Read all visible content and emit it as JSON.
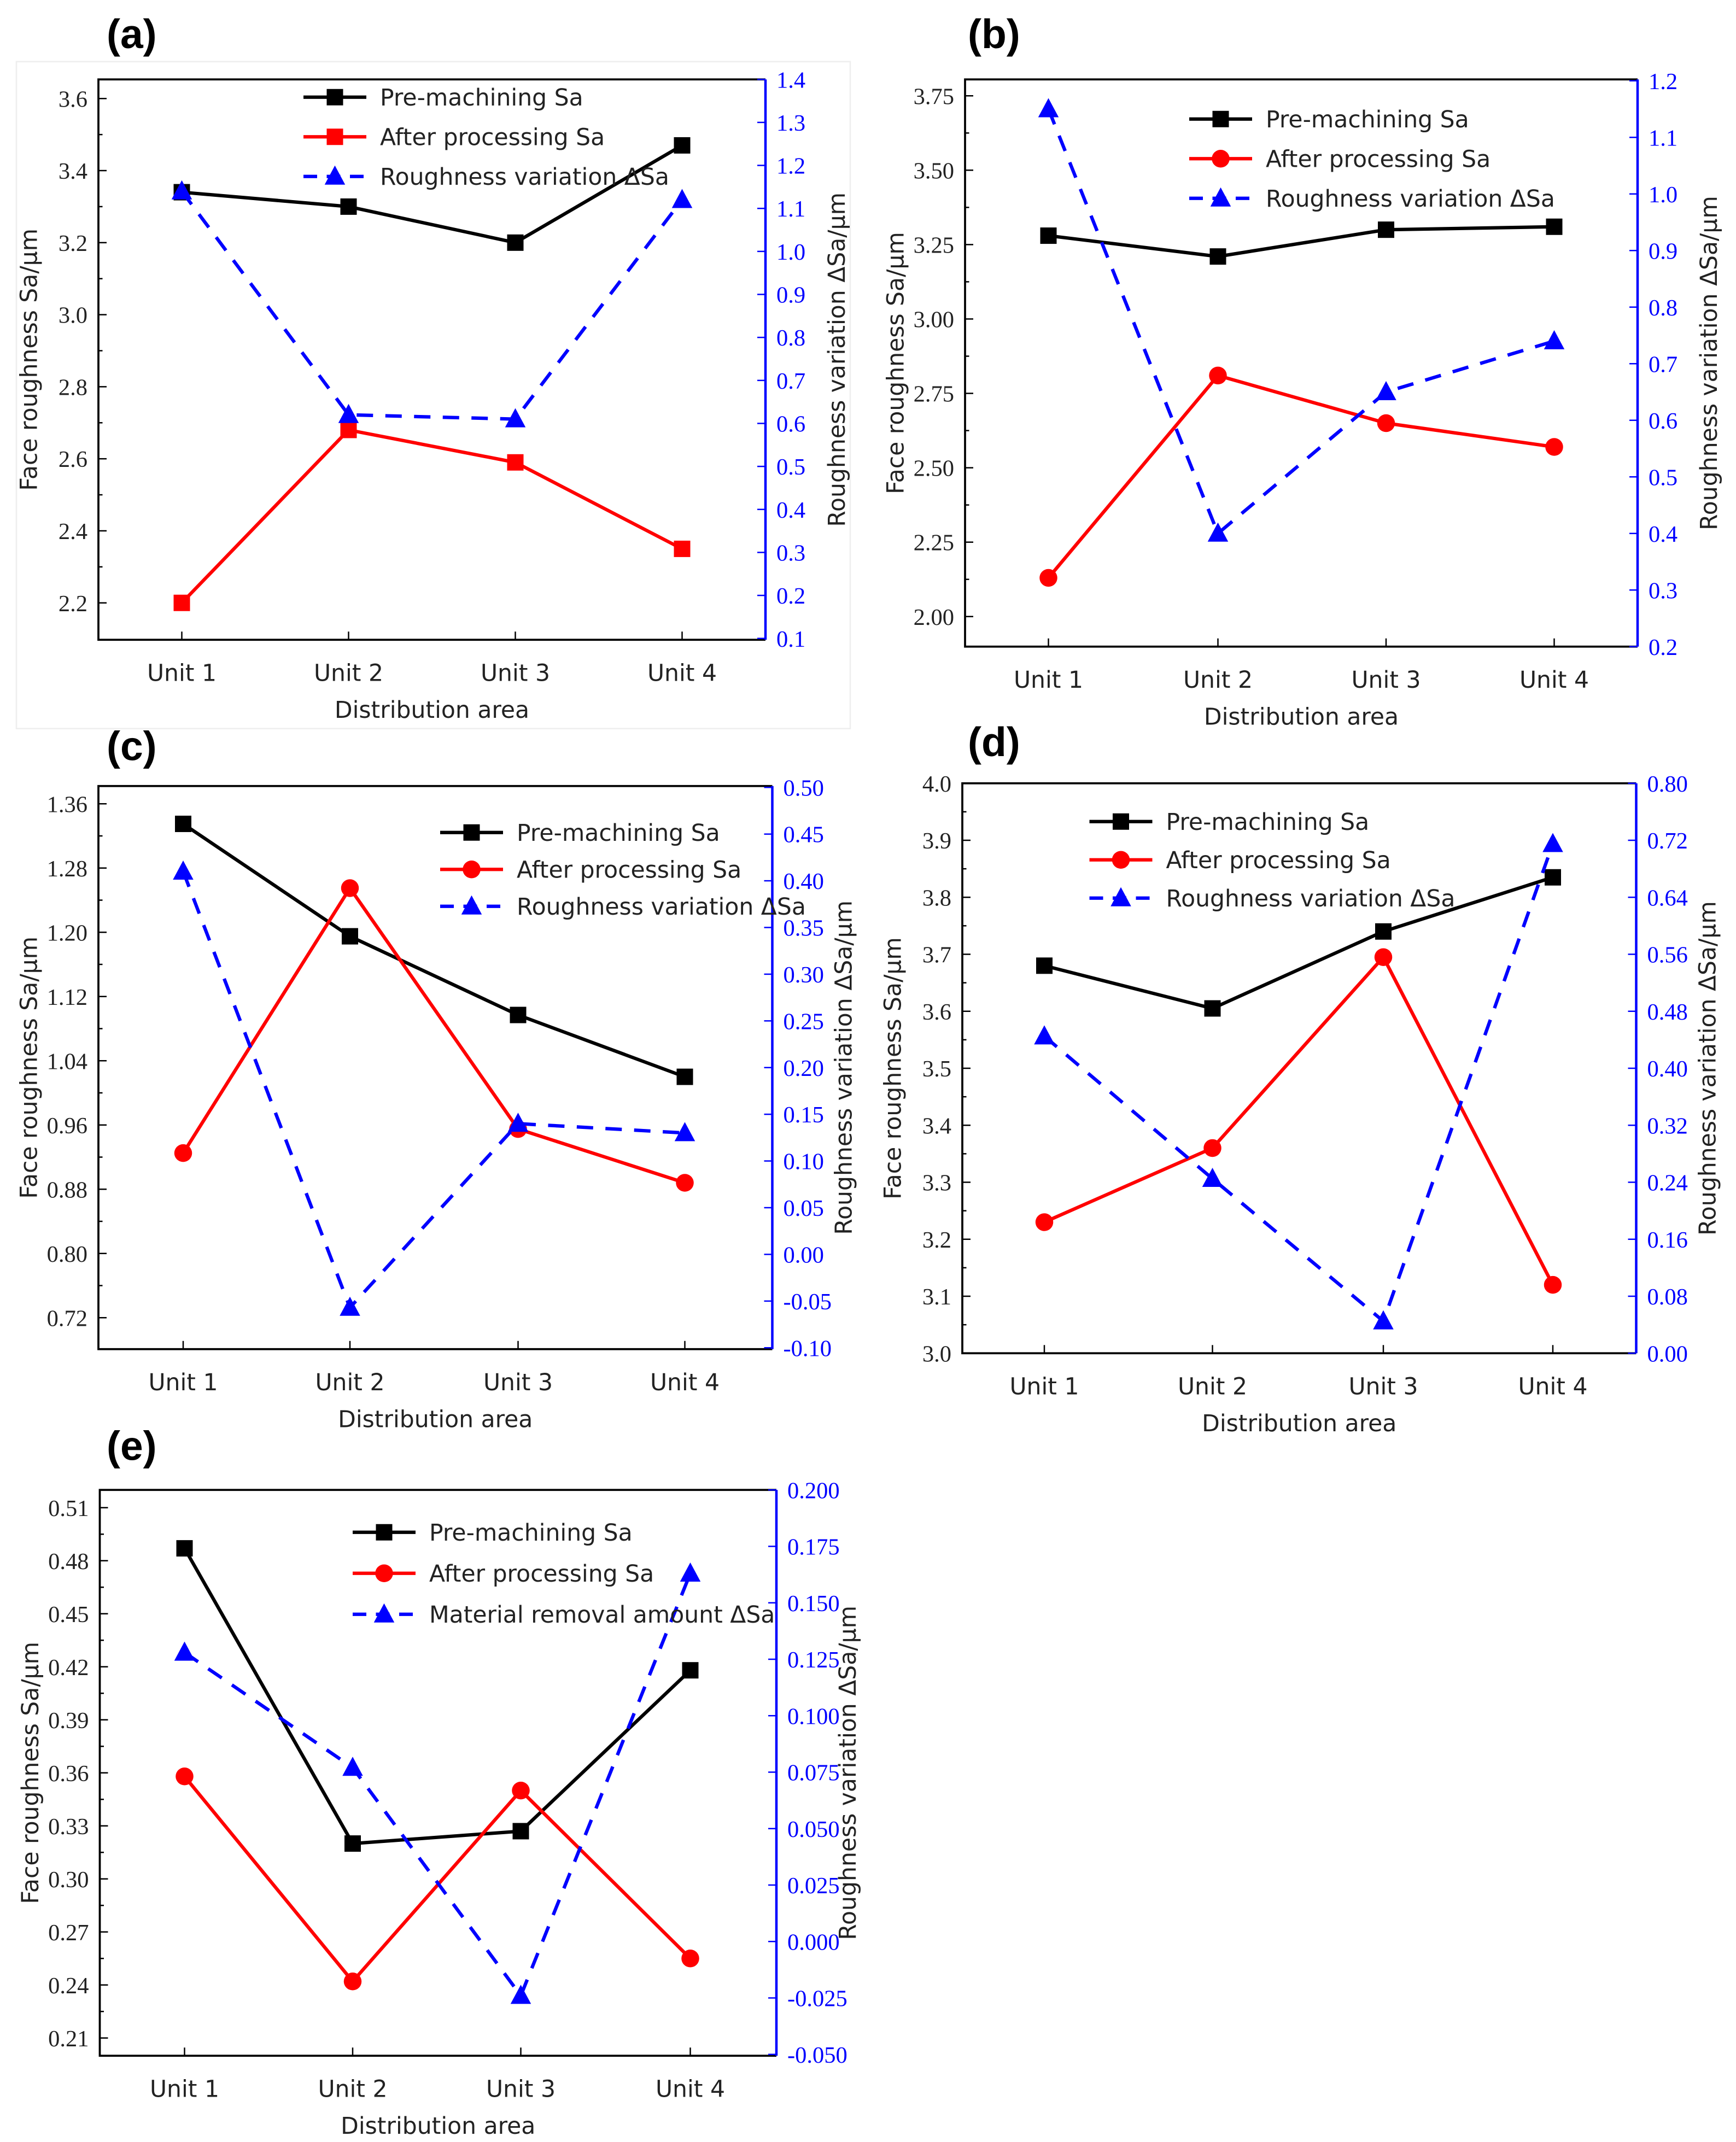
{
  "colors": {
    "pre": "#000000",
    "after": "#ff0000",
    "delta": "#0000ff"
  },
  "chart_data": [
    {
      "panel": "(a)",
      "type": "line",
      "categories": [
        "Unit 1",
        "Unit 2",
        "Unit 3",
        "Unit 4"
      ],
      "xlabel": "Distribution area",
      "ylabel": "Face roughness Sa/μm",
      "y2label": "Roughness variation ΔSa/μm",
      "ylim": [
        2.2,
        3.6
      ],
      "yticks": [
        "2.2",
        "2.4",
        "2.6",
        "2.8",
        "3.0",
        "3.2",
        "3.4",
        "3.6"
      ],
      "y2lim": [
        0.1,
        1.4
      ],
      "y2ticks": [
        "0.1",
        "0.2",
        "0.3",
        "0.4",
        "0.5",
        "0.6",
        "0.7",
        "0.8",
        "0.9",
        "1.0",
        "1.1",
        "1.2",
        "1.3",
        "1.4"
      ],
      "series": [
        {
          "name": "Pre-machining Sa",
          "axis": "left",
          "marker": "square",
          "values": [
            3.34,
            3.3,
            3.2,
            3.47
          ]
        },
        {
          "name": "After processing Sa",
          "axis": "left",
          "marker": "square",
          "values": [
            2.2,
            2.68,
            2.59,
            2.35
          ]
        },
        {
          "name": "Roughness variation ΔSa",
          "axis": "right",
          "marker": "triangle",
          "dashed": true,
          "values": [
            1.14,
            0.62,
            0.61,
            1.12
          ]
        }
      ]
    },
    {
      "panel": "(b)",
      "type": "line",
      "categories": [
        "Unit 1",
        "Unit 2",
        "Unit 3",
        "Unit 4"
      ],
      "xlabel": "Distribution area",
      "ylabel": "Face roughness Sa/μm",
      "y2label": "Roughness variation ΔSa/μm",
      "ylim": [
        2.0,
        3.75
      ],
      "yticks": [
        "2.00",
        "2.25",
        "2.50",
        "2.75",
        "3.00",
        "3.25",
        "3.50",
        "3.75"
      ],
      "y2lim": [
        0.2,
        1.2
      ],
      "y2ticks": [
        "0.2",
        "0.3",
        "0.4",
        "0.5",
        "0.6",
        "0.7",
        "0.8",
        "0.9",
        "1.0",
        "1.1",
        "1.2"
      ],
      "series": [
        {
          "name": "Pre-machining Sa",
          "axis": "left",
          "marker": "square",
          "values": [
            3.28,
            3.21,
            3.3,
            3.31
          ]
        },
        {
          "name": "After processing Sa",
          "axis": "left",
          "marker": "circle",
          "values": [
            2.13,
            2.81,
            2.65,
            2.57
          ]
        },
        {
          "name": "Roughness variation ΔSa",
          "axis": "right",
          "marker": "triangle",
          "dashed": true,
          "values": [
            1.15,
            0.4,
            0.65,
            0.74
          ]
        }
      ]
    },
    {
      "panel": "(c)",
      "type": "line",
      "categories": [
        "Unit 1",
        "Unit 2",
        "Unit 3",
        "Unit 4"
      ],
      "xlabel": "Distribution area",
      "ylabel": "Face roughness Sa/μm",
      "y2label": "Roughness variation ΔSa/μm",
      "ylim": [
        0.72,
        1.36
      ],
      "yticks": [
        "0.72",
        "0.80",
        "0.88",
        "0.96",
        "1.04",
        "1.12",
        "1.20",
        "1.28",
        "1.36"
      ],
      "y2lim": [
        -0.1,
        0.5
      ],
      "y2ticks": [
        "-0.10",
        "-0.05",
        "0.00",
        "0.05",
        "0.10",
        "0.15",
        "0.20",
        "0.25",
        "0.30",
        "0.35",
        "0.40",
        "0.45",
        "0.50"
      ],
      "series": [
        {
          "name": "Pre-machining Sa",
          "axis": "left",
          "marker": "square",
          "values": [
            1.335,
            1.195,
            1.097,
            1.02
          ]
        },
        {
          "name": "After processing Sa",
          "axis": "left",
          "marker": "circle",
          "values": [
            0.925,
            1.255,
            0.955,
            0.888
          ]
        },
        {
          "name": "Roughness variation ΔSa",
          "axis": "right",
          "marker": "triangle",
          "dashed": true,
          "values": [
            0.41,
            -0.057,
            0.14,
            0.13
          ]
        }
      ]
    },
    {
      "panel": "(d)",
      "type": "line",
      "categories": [
        "Unit 1",
        "Unit 2",
        "Unit 3",
        "Unit 4"
      ],
      "xlabel": "Distribution area",
      "ylabel": "Face roughness Sa/μm",
      "y2label": "Roughness variation ΔSa/μm",
      "ylim": [
        3.0,
        4.0
      ],
      "yticks": [
        "3.0",
        "3.1",
        "3.2",
        "3.3",
        "3.4",
        "3.5",
        "3.6",
        "3.7",
        "3.8",
        "3.9",
        "4.0"
      ],
      "y2lim": [
        0.0,
        0.8
      ],
      "y2ticks": [
        "0.00",
        "0.08",
        "0.16",
        "0.24",
        "0.32",
        "0.40",
        "0.48",
        "0.56",
        "0.64",
        "0.72",
        "0.80"
      ],
      "series": [
        {
          "name": "Pre-machining Sa",
          "axis": "left",
          "marker": "square",
          "values": [
            3.68,
            3.605,
            3.74,
            3.835
          ]
        },
        {
          "name": "After processing Sa",
          "axis": "left",
          "marker": "circle",
          "values": [
            3.23,
            3.36,
            3.695,
            3.12
          ]
        },
        {
          "name": "Roughness variation ΔSa",
          "axis": "right",
          "marker": "triangle",
          "dashed": true,
          "values": [
            0.445,
            0.245,
            0.045,
            0.715
          ]
        }
      ]
    },
    {
      "panel": "(e)",
      "type": "line",
      "categories": [
        "Unit 1",
        "Unit 2",
        "Unit 3",
        "Unit 4"
      ],
      "xlabel": "Distribution area",
      "ylabel": "Face roughness Sa/μm",
      "y2label": "Roughness variation ΔSa/μm",
      "ylim": [
        0.21,
        0.51
      ],
      "yticks": [
        "0.21",
        "0.24",
        "0.27",
        "0.30",
        "0.33",
        "0.36",
        "0.39",
        "0.42",
        "0.45",
        "0.48",
        "0.51"
      ],
      "y2lim": [
        -0.05,
        0.2
      ],
      "y2ticks": [
        "-0.050",
        "-0.025",
        "0.000",
        "0.025",
        "0.050",
        "0.075",
        "0.100",
        "0.125",
        "0.150",
        "0.175",
        "0.200"
      ],
      "series": [
        {
          "name": "Pre-machining Sa",
          "axis": "left",
          "marker": "square",
          "values": [
            0.487,
            0.32,
            0.327,
            0.418
          ]
        },
        {
          "name": "After processing Sa",
          "axis": "left",
          "marker": "circle",
          "values": [
            0.358,
            0.242,
            0.35,
            0.255
          ]
        },
        {
          "name": "Material removal amount ΔSa",
          "axis": "right",
          "marker": "triangle",
          "dashed": true,
          "values": [
            0.128,
            0.077,
            -0.024,
            0.163
          ]
        }
      ]
    }
  ]
}
